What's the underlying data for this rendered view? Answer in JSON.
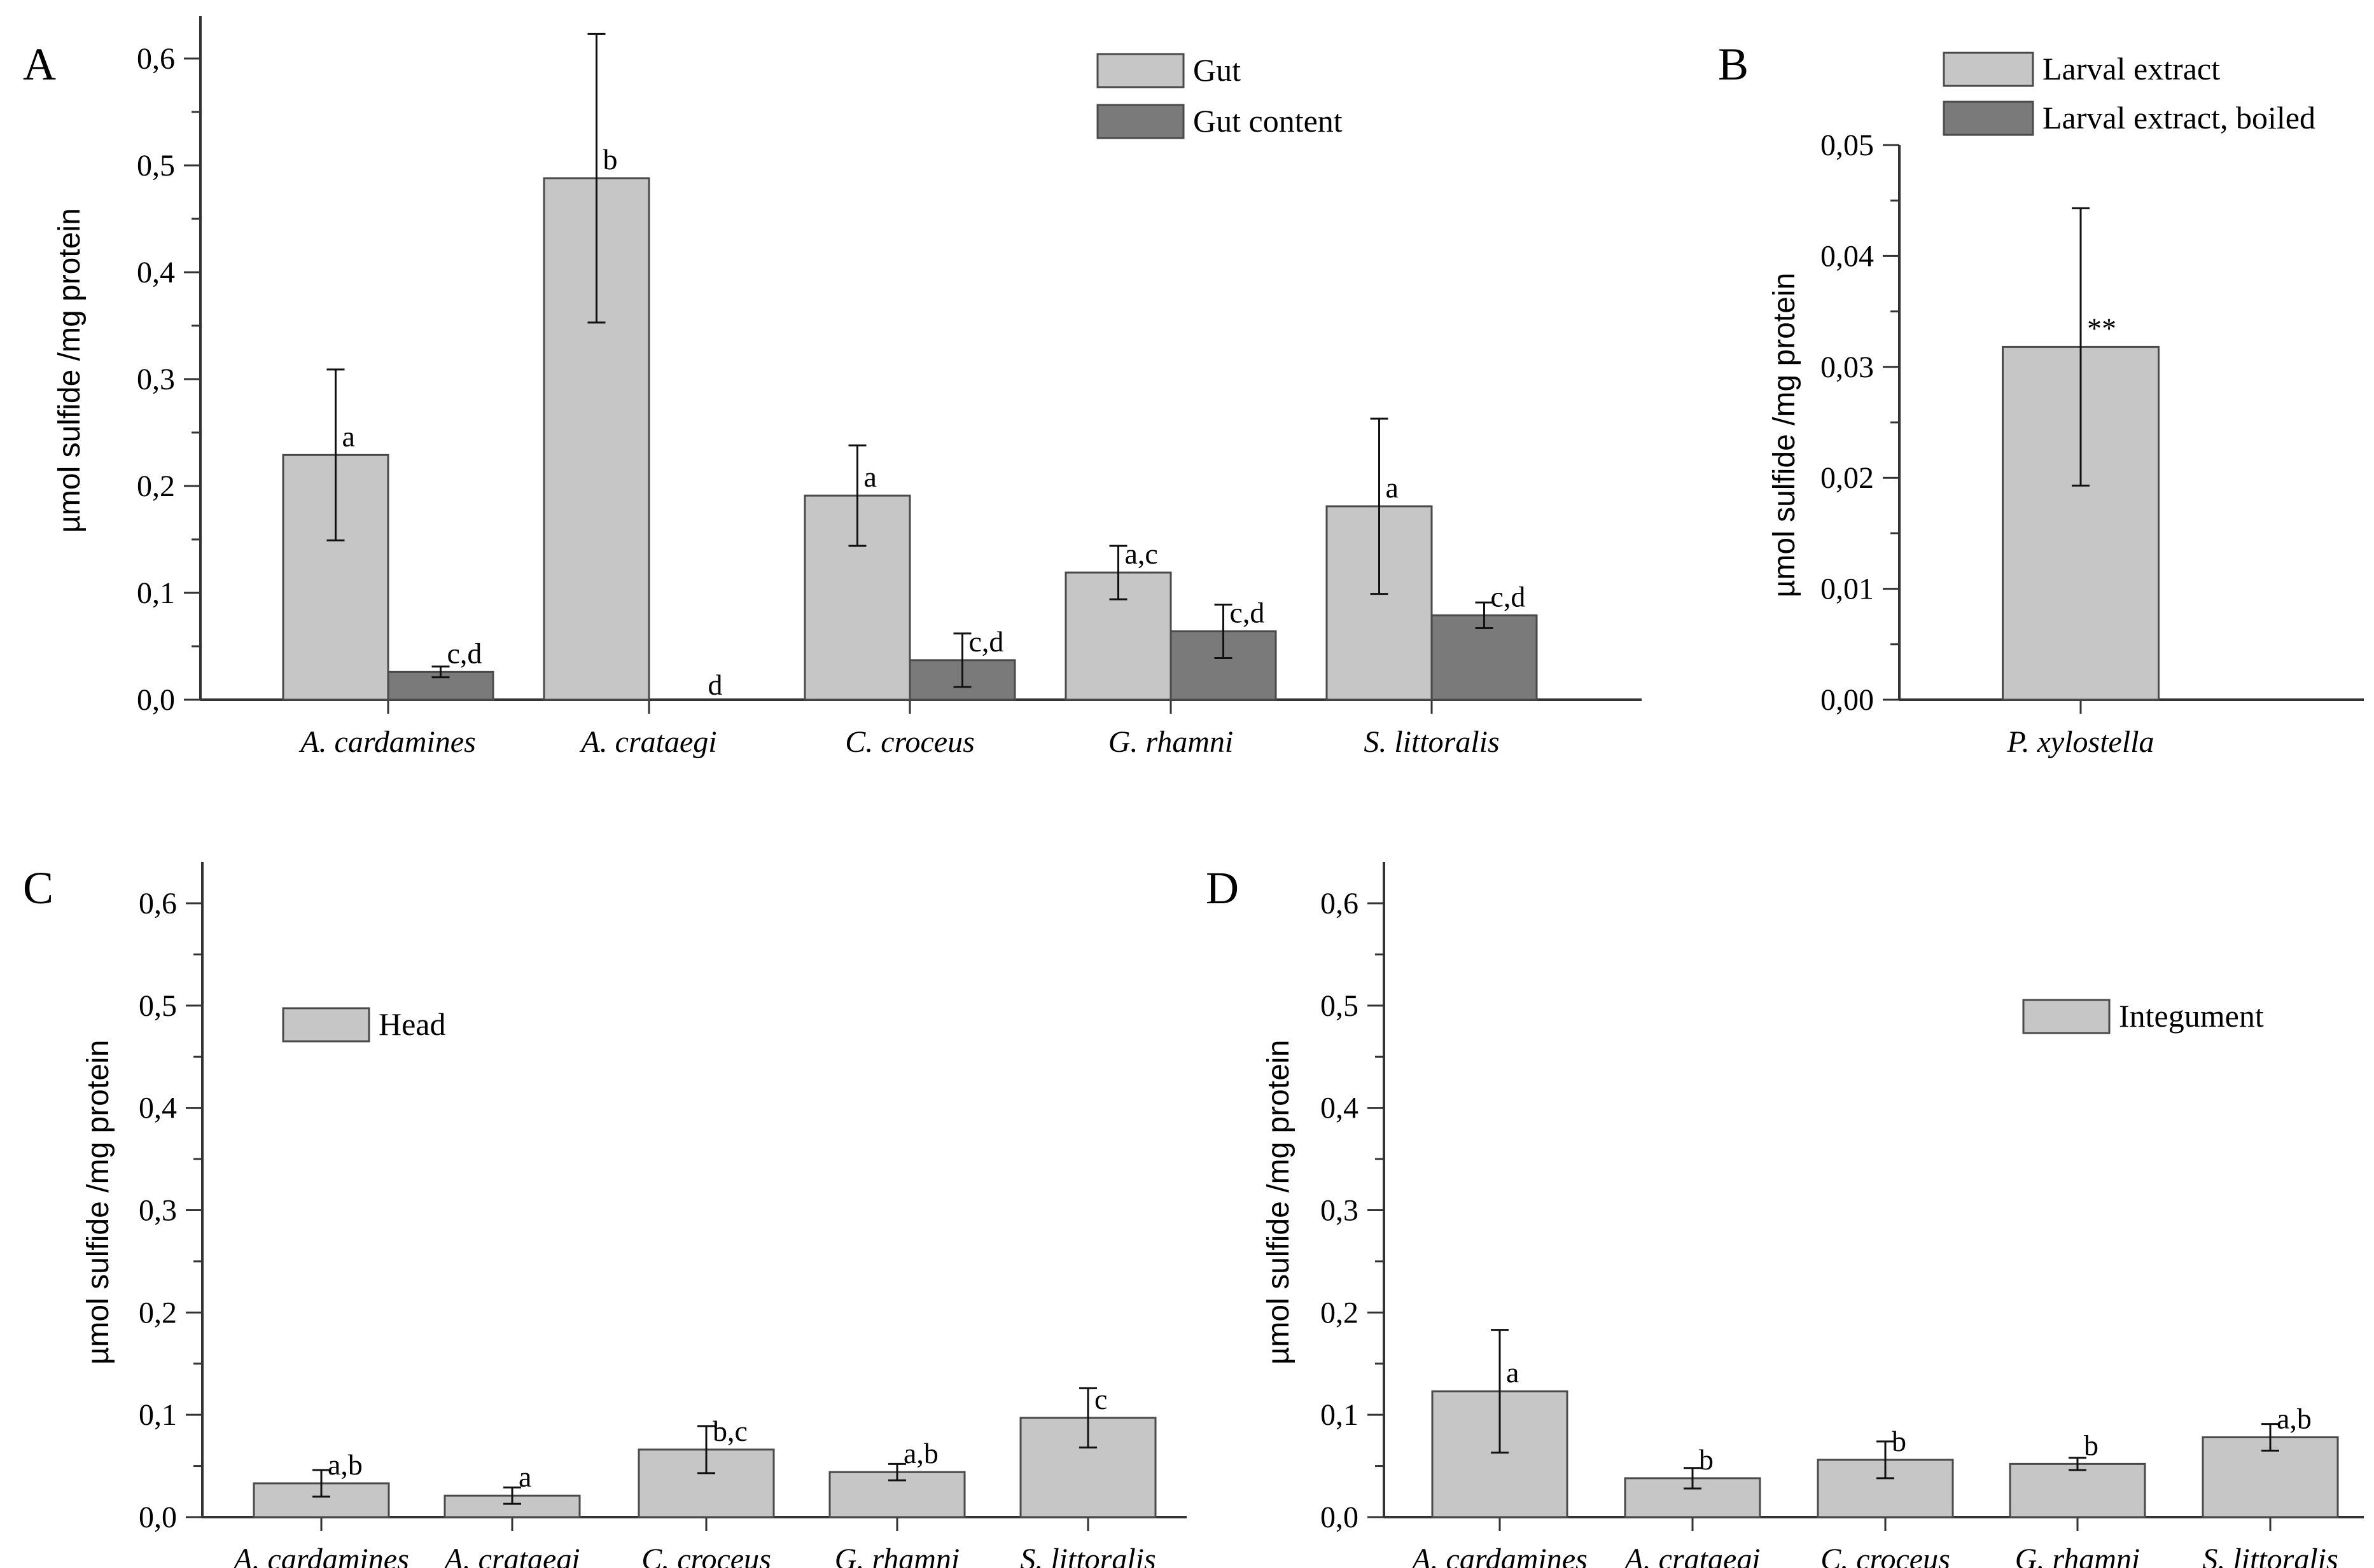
{
  "colors": {
    "light": "#c6c6c6",
    "dark": "#7a7a7a",
    "stroke": "#4a4a4a",
    "axis": "#333333"
  },
  "chart_data": [
    {
      "panel": "A",
      "type": "bar",
      "ylabel": "µmol sulfide /mg protein",
      "ylim": [
        0,
        0.65
      ],
      "yticks": [
        "0,0",
        "0,1",
        "0,2",
        "0,3",
        "0,4",
        "0,5",
        "0,6"
      ],
      "ytick_values": [
        0,
        0.1,
        0.2,
        0.3,
        0.4,
        0.5,
        0.6
      ],
      "categories": [
        "A. cardamines",
        "A. crataegi",
        "C. croceus",
        "G. rhamni",
        "S. littoralis"
      ],
      "legend_position": "top-right",
      "series": [
        {
          "name": "Gut",
          "color_key": "light",
          "values": [
            0.229,
            0.488,
            0.191,
            0.119,
            0.181
          ],
          "errors": [
            0.08,
            0.135,
            0.047,
            0.025,
            0.082
          ],
          "labels": [
            "a",
            "b",
            "a",
            "a,c",
            "a"
          ]
        },
        {
          "name": "Gut content",
          "color_key": "dark",
          "values": [
            0.026,
            0.0,
            0.037,
            0.064,
            0.079
          ],
          "errors": [
            0.005,
            0.0,
            0.025,
            0.025,
            0.012
          ],
          "labels": [
            "c,d",
            "d",
            "c,d",
            "c,d",
            "c,d"
          ]
        }
      ]
    },
    {
      "panel": "B",
      "type": "bar",
      "ylabel": "µmol sulfide /mg protein",
      "ylim": [
        0,
        0.05
      ],
      "yticks": [
        "0,00",
        "0,01",
        "0,02",
        "0,03",
        "0,04",
        "0,05"
      ],
      "ytick_values": [
        0,
        0.01,
        0.02,
        0.03,
        0.04,
        0.05
      ],
      "categories": [
        "P. xylostella"
      ],
      "legend_position": "top",
      "series": [
        {
          "name": "Larval extract",
          "color_key": "light",
          "values": [
            0.0318
          ],
          "errors": [
            0.0125
          ],
          "labels": [
            "**"
          ]
        },
        {
          "name": "Larval extract, boiled",
          "color_key": "dark",
          "values": [
            0.0
          ],
          "errors": [
            0.0
          ],
          "labels": [
            ""
          ]
        }
      ]
    },
    {
      "panel": "C",
      "type": "bar",
      "ylabel": "µmol sulfide /mg protein",
      "ylim": [
        0,
        0.65
      ],
      "yticks": [
        "0,0",
        "0,1",
        "0,2",
        "0,3",
        "0,4",
        "0,5",
        "0,6"
      ],
      "ytick_values": [
        0,
        0.1,
        0.2,
        0.3,
        0.4,
        0.5,
        0.6
      ],
      "categories": [
        "A. cardamines",
        "A. crataegi",
        "C. croceus",
        "G. rhamni",
        "S. littoralis"
      ],
      "legend_position": "top-left",
      "series": [
        {
          "name": "Head",
          "color_key": "light",
          "values": [
            0.033,
            0.021,
            0.066,
            0.044,
            0.097
          ],
          "errors": [
            0.013,
            0.008,
            0.023,
            0.008,
            0.029
          ],
          "labels": [
            "a,b",
            "a",
            "b,c",
            "a,b",
            "c"
          ]
        }
      ]
    },
    {
      "panel": "D",
      "type": "bar",
      "ylabel": "µmol sulfide /mg protein",
      "ylim": [
        0,
        0.65
      ],
      "yticks": [
        "0,0",
        "0,1",
        "0,2",
        "0,3",
        "0,4",
        "0,5",
        "0,6"
      ],
      "ytick_values": [
        0,
        0.1,
        0.2,
        0.3,
        0.4,
        0.5,
        0.6
      ],
      "categories": [
        "A. cardamines",
        "A. crataegi",
        "C. croceus",
        "G. rhamni",
        "S. littoralis"
      ],
      "legend_position": "top-right",
      "series": [
        {
          "name": "Integument",
          "color_key": "light",
          "values": [
            0.123,
            0.038,
            0.056,
            0.052,
            0.078
          ],
          "errors": [
            0.06,
            0.01,
            0.018,
            0.006,
            0.013
          ],
          "labels": [
            "a",
            "b",
            "b",
            "b",
            "a,b"
          ]
        }
      ]
    }
  ]
}
